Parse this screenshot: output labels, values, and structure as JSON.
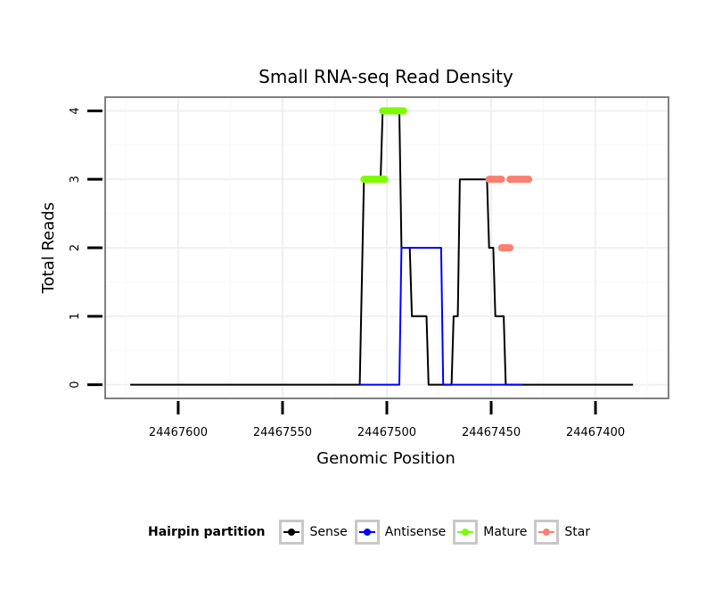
{
  "chart_data": {
    "type": "line",
    "title": "Small RNA-seq Read Density",
    "xlabel": "Genomic Position",
    "ylabel": "Total Reads",
    "x_reversed": true,
    "xlim": [
      24467635,
      24467365
    ],
    "ylim": [
      -0.2,
      4.2
    ],
    "xticks": [
      24467600,
      24467550,
      24467500,
      24467450,
      24467400
    ],
    "xtick_labels": [
      "24467600",
      "24467550",
      "24467500",
      "24467450",
      "24467400"
    ],
    "yticks": [
      0,
      1,
      2,
      3,
      4
    ],
    "ytick_labels": [
      "0",
      "1",
      "2",
      "3",
      "4"
    ],
    "grid": true,
    "legend": {
      "title": "Hairpin partition",
      "position": "bottom",
      "entries": [
        {
          "label": "Sense",
          "color": "#000000"
        },
        {
          "label": "Antisense",
          "color": "#0000ff"
        },
        {
          "label": "Mature",
          "color": "#7cfc00"
        },
        {
          "label": "Star",
          "color": "#fa8072"
        }
      ]
    },
    "series": [
      {
        "name": "Sense",
        "color": "#000000",
        "x": [
          24467623,
          24467513,
          24467511,
          24467503,
          24467502,
          24467494,
          24467493,
          24467489,
          24467488,
          24467481,
          24467480,
          24467469,
          24467468,
          24467466,
          24467465,
          24467452,
          24467451,
          24467449,
          24467448,
          24467444,
          24467443,
          24467436,
          24467435,
          24467400,
          24467382
        ],
        "y": [
          0,
          0,
          3,
          3,
          4,
          4,
          2,
          2,
          1,
          1,
          0,
          0,
          1,
          1,
          3,
          3,
          2,
          2,
          1,
          1,
          0,
          0,
          0,
          0,
          0
        ]
      },
      {
        "name": "Antisense",
        "color": "#0000ff",
        "x": [
          24467513,
          24467494,
          24467493,
          24467474,
          24467473,
          24467435
        ],
        "y": [
          0,
          0,
          2,
          2,
          0,
          0
        ]
      },
      {
        "name": "Mature",
        "color": "#7cfc00",
        "segments": [
          {
            "x": [
              24467511,
              24467501
            ],
            "y": 3
          },
          {
            "x": [
              24467502,
              24467492
            ],
            "y": 4
          }
        ]
      },
      {
        "name": "Star",
        "color": "#fa8072",
        "segments": [
          {
            "x": [
              24467451,
              24467445
            ],
            "y": 3
          },
          {
            "x": [
              24467445,
              24467441
            ],
            "y": 2
          },
          {
            "x": [
              24467441,
              24467432
            ],
            "y": 3
          }
        ]
      }
    ]
  }
}
